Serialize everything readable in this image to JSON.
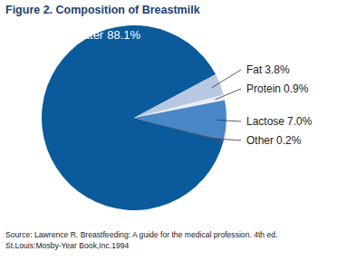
{
  "chart_data": {
    "type": "pie",
    "title": "Figure 2. Composition of Breastmilk",
    "categories": [
      "Water",
      "Fat",
      "Protein",
      "Lactose",
      "Other"
    ],
    "values": [
      88.1,
      3.8,
      0.9,
      7.0,
      0.2
    ],
    "value_labels": [
      "88.1%",
      "3.8%",
      "0.9%",
      "7.0%",
      "0.2%"
    ],
    "data_labels": true,
    "colors": [
      "#0b5a9c",
      "#b8c8e2",
      "#e8edf5",
      "#4a87c6",
      "#16263d"
    ],
    "source": [
      "Source: Lawrence R. Breastfeeding: A guide for the medical profession. 4th ed.",
      "St.Louis:Mosby-Year Book,Inc.1994"
    ]
  }
}
